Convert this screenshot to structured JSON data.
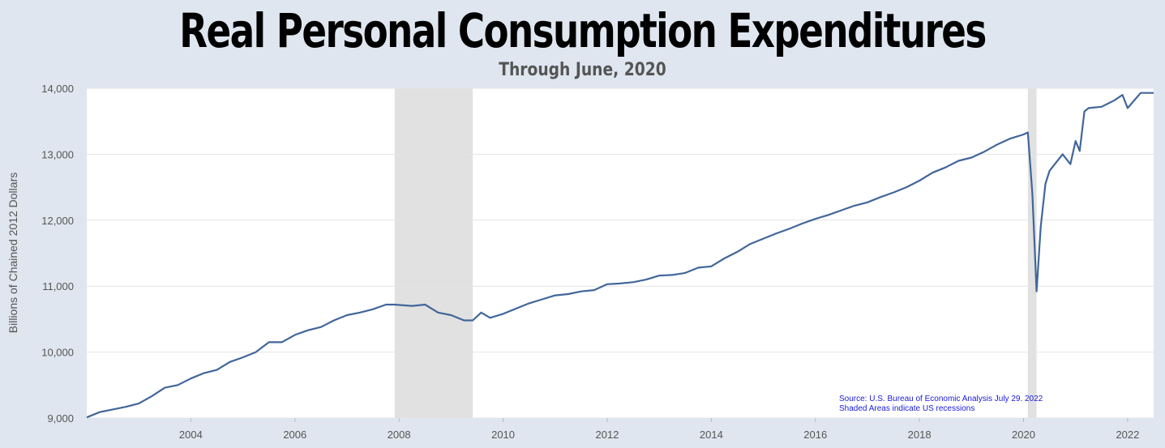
{
  "chart_data": {
    "type": "line",
    "title": "Real Personal Consumption Expenditures",
    "subtitle": "Through June, 2020",
    "ylabel": "Billions of Chained 2012 Dollars",
    "xlabel": "",
    "xlim": [
      2002.0,
      2022.5
    ],
    "ylim": [
      9000,
      14000
    ],
    "yticks": [
      9000,
      10000,
      11000,
      12000,
      13000,
      14000
    ],
    "ytick_labels": [
      "9,000",
      "10,000",
      "11,000",
      "12,000",
      "13,000",
      "14,000"
    ],
    "xticks": [
      2004,
      2006,
      2008,
      2010,
      2012,
      2014,
      2016,
      2018,
      2020,
      2022
    ],
    "xtick_labels": [
      "2004",
      "2006",
      "2008",
      "2010",
      "2012",
      "2014",
      "2016",
      "2018",
      "2020",
      "2022"
    ],
    "grid": "horizontal",
    "line_color": "#41669a",
    "recession_color": "#e1e1e1",
    "recessions": [
      [
        2007.917,
        2009.417
      ],
      [
        2020.083,
        2020.25
      ]
    ],
    "annotations": [
      "Source: U.S. Bureau of Economic Analysis July 29. 2022",
      "Shaded Areas indicate US recessions"
    ],
    "series": [
      {
        "x": [
          2002.0,
          2002.25,
          2002.5,
          2002.75,
          2003.0,
          2003.25,
          2003.5,
          2003.75,
          2004.0,
          2004.25,
          2004.5,
          2004.75,
          2005.0,
          2005.25,
          2005.5,
          2005.75,
          2006.0,
          2006.25,
          2006.5,
          2006.75,
          2007.0,
          2007.25,
          2007.5,
          2007.75,
          2007.917,
          2008.25,
          2008.5,
          2008.75,
          2009.0,
          2009.25,
          2009.417,
          2009.58,
          2009.75,
          2010.0,
          2010.25,
          2010.5,
          2010.75,
          2011.0,
          2011.25,
          2011.5,
          2011.75,
          2012.0,
          2012.25,
          2012.5,
          2012.75,
          2013.0,
          2013.25,
          2013.5,
          2013.75,
          2014.0,
          2014.25,
          2014.5,
          2014.75,
          2015.0,
          2015.25,
          2015.5,
          2015.75,
          2016.0,
          2016.25,
          2016.5,
          2016.75,
          2017.0,
          2017.25,
          2017.5,
          2017.75,
          2018.0,
          2018.25,
          2018.5,
          2018.75,
          2019.0,
          2019.25,
          2019.5,
          2019.75,
          2020.0,
          2020.083,
          2020.17,
          2020.25,
          2020.33,
          2020.42,
          2020.5,
          2020.75,
          2020.9,
          2021.0,
          2021.08,
          2021.17,
          2021.25,
          2021.5,
          2021.75,
          2021.9,
          2022.0,
          2022.25,
          2022.5
        ],
        "y": [
          9010,
          9090,
          9130,
          9170,
          9220,
          9330,
          9460,
          9500,
          9600,
          9680,
          9730,
          9850,
          9920,
          10000,
          10150,
          10150,
          10260,
          10330,
          10380,
          10480,
          10560,
          10600,
          10650,
          10720,
          10720,
          10700,
          10720,
          10600,
          10560,
          10480,
          10480,
          10600,
          10520,
          10580,
          10660,
          10740,
          10800,
          10860,
          10880,
          10920,
          10940,
          11030,
          11040,
          11060,
          11100,
          11160,
          11170,
          11200,
          11280,
          11300,
          11420,
          11520,
          11640,
          11720,
          11800,
          11870,
          11950,
          12020,
          12080,
          12150,
          12220,
          12270,
          12350,
          12420,
          12500,
          12600,
          12720,
          12800,
          12900,
          12950,
          13040,
          13150,
          13240,
          13300,
          13330,
          12400,
          10920,
          11900,
          12550,
          12750,
          13000,
          12850,
          13200,
          13050,
          13650,
          13700,
          13720,
          13820,
          13900,
          13700,
          13930,
          13930
        ]
      }
    ]
  }
}
